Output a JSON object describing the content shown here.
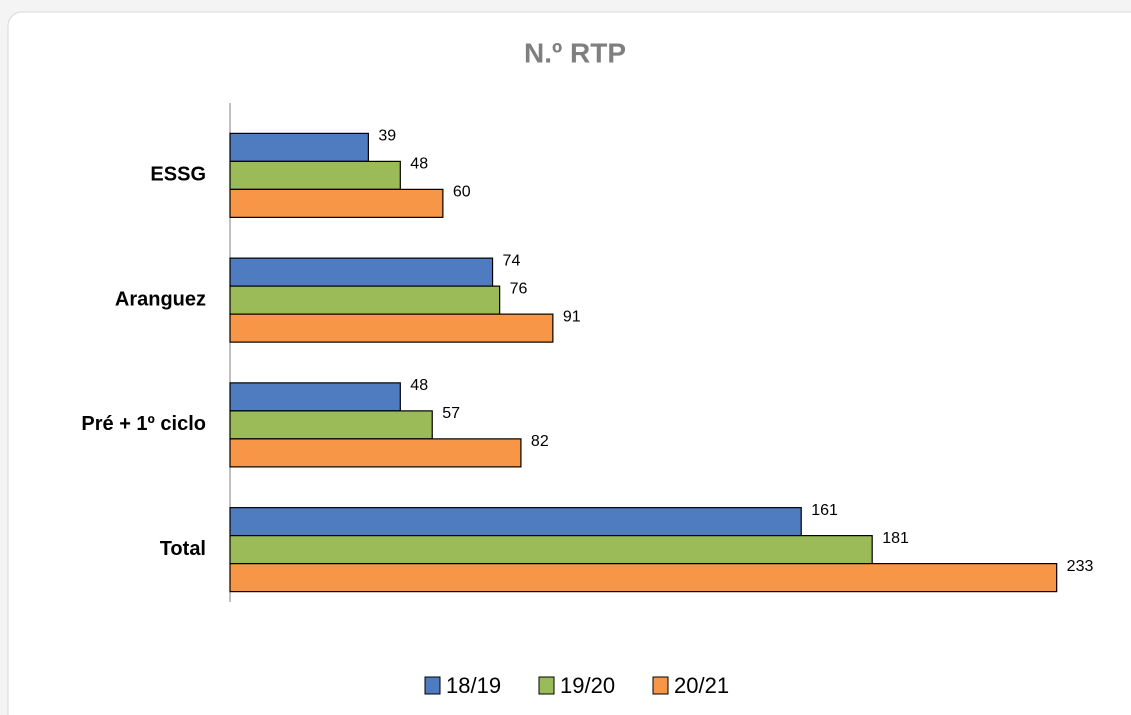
{
  "chart_data": {
    "type": "hbar",
    "title": "N.º RTP",
    "categories": [
      "ESSG",
      "Aranguez",
      "Pré + 1º ciclo",
      "Total"
    ],
    "series": [
      {
        "name": "18/19",
        "color": "#4f7bc0",
        "values": [
          39,
          74,
          48,
          161
        ]
      },
      {
        "name": "19/20",
        "color": "#9bbb59",
        "values": [
          48,
          76,
          57,
          181
        ]
      },
      {
        "name": "20/21",
        "color": "#f79646",
        "values": [
          60,
          91,
          82,
          233
        ]
      }
    ],
    "xlim": [
      0,
      250
    ],
    "legend": "bottom"
  }
}
